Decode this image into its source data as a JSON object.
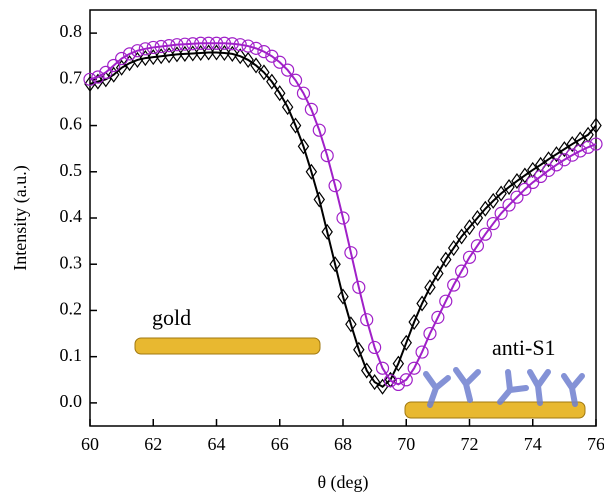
{
  "chart_data": {
    "type": "line",
    "xlabel": "θ (deg)",
    "ylabel": "Intensity (a.u.)",
    "annotations": [
      "gold",
      "anti-S1"
    ],
    "x": [
      60,
      60.25,
      60.5,
      60.75,
      61,
      61.25,
      61.5,
      61.75,
      62,
      62.25,
      62.5,
      62.75,
      63,
      63.25,
      63.5,
      63.75,
      64,
      64.25,
      64.5,
      64.75,
      65,
      65.25,
      65.5,
      65.75,
      66,
      66.25,
      66.5,
      66.75,
      67,
      67.25,
      67.5,
      67.75,
      68,
      68.25,
      68.5,
      68.75,
      69,
      69.25,
      69.5,
      69.75,
      70,
      70.25,
      70.5,
      70.75,
      71,
      71.25,
      71.5,
      71.75,
      72,
      72.25,
      72.5,
      72.75,
      73,
      73.25,
      73.5,
      73.75,
      74,
      74.25,
      74.5,
      74.75,
      75,
      75.25,
      75.5,
      75.75,
      76
    ],
    "series": [
      {
        "color": "#000000",
        "marker": "diamond",
        "values": [
          0.69,
          0.695,
          0.7,
          0.71,
          0.725,
          0.735,
          0.742,
          0.746,
          0.748,
          0.75,
          0.752,
          0.754,
          0.755,
          0.756,
          0.757,
          0.758,
          0.758,
          0.757,
          0.755,
          0.75,
          0.742,
          0.73,
          0.715,
          0.695,
          0.67,
          0.64,
          0.6,
          0.555,
          0.5,
          0.44,
          0.37,
          0.3,
          0.23,
          0.17,
          0.115,
          0.07,
          0.045,
          0.035,
          0.05,
          0.085,
          0.13,
          0.175,
          0.215,
          0.25,
          0.28,
          0.31,
          0.335,
          0.36,
          0.38,
          0.4,
          0.42,
          0.437,
          0.453,
          0.467,
          0.48,
          0.492,
          0.504,
          0.515,
          0.527,
          0.538,
          0.549,
          0.56,
          0.57,
          0.58,
          0.6
        ]
      },
      {
        "color": "#a020c8",
        "marker": "circle",
        "values": [
          0.7,
          0.705,
          0.715,
          0.73,
          0.745,
          0.755,
          0.762,
          0.766,
          0.769,
          0.771,
          0.773,
          0.775,
          0.776,
          0.777,
          0.778,
          0.778,
          0.778,
          0.778,
          0.777,
          0.775,
          0.772,
          0.767,
          0.76,
          0.75,
          0.737,
          0.72,
          0.698,
          0.67,
          0.635,
          0.59,
          0.535,
          0.47,
          0.4,
          0.325,
          0.25,
          0.18,
          0.12,
          0.075,
          0.048,
          0.04,
          0.05,
          0.075,
          0.11,
          0.15,
          0.185,
          0.22,
          0.255,
          0.285,
          0.315,
          0.34,
          0.365,
          0.388,
          0.41,
          0.428,
          0.445,
          0.462,
          0.477,
          0.49,
          0.503,
          0.515,
          0.526,
          0.536,
          0.545,
          0.553,
          0.56
        ]
      }
    ],
    "xlim": [
      60,
      76
    ],
    "xticks": [
      60,
      62,
      64,
      66,
      68,
      70,
      72,
      74,
      76
    ],
    "ylim": [
      -0.05,
      0.85
    ],
    "yticks": [
      {
        "value": 0,
        "label": "0.0"
      },
      0.1,
      0.2,
      0.3,
      0.4,
      0.5,
      0.6,
      0.7,
      0.8
    ]
  }
}
